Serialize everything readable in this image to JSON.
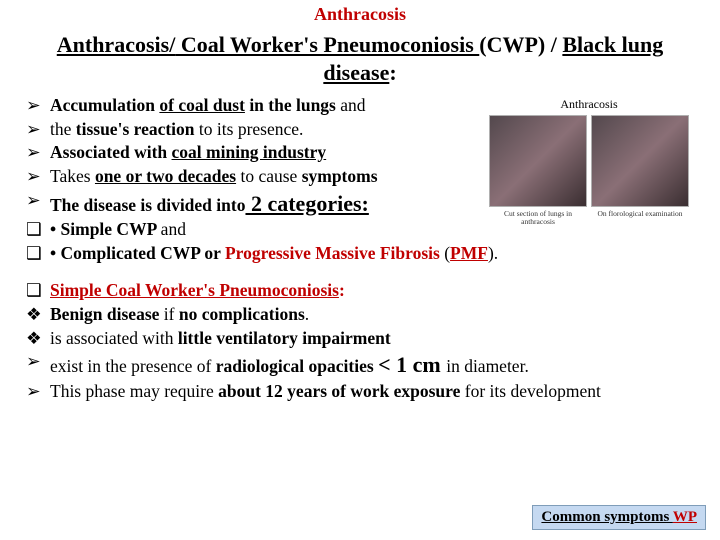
{
  "header": "Anthracosis",
  "title": {
    "pre": "Anthracosis/",
    "mid": " Coal Worker's Pneumoconiosis ",
    "abbr": "(CWP) / ",
    "end": "Black lung disease",
    "tail": ":"
  },
  "figure": {
    "label": "Anthracosis",
    "cap1": "Cut section of lungs in anthracosis",
    "cap2": "On florological examination"
  },
  "b1": {
    "l1a": " Accumulation ",
    "l1b": "of coal dust",
    "l1c": " in the lungs ",
    "l1d": "and",
    "l2a": "the ",
    "l2b": "tissue's reaction",
    "l2c": " to its presence.",
    "l3a": "Associated with ",
    "l3b": "coal mining industry",
    "l4a": "Takes ",
    "l4b": "one or two decades",
    "l4c": " to cause ",
    "l4d": "symptoms",
    "l5a": "The disease is divided into",
    "l5b": " 2 categories:",
    "l6a": "• ",
    "l6b": "Simple CWP ",
    "l6c": "and",
    "l7a": "• ",
    "l7b": "Complicated CWP",
    "l7c": " or ",
    "l7d": "Progressive Massive Fibrosis ",
    "l7e": "(",
    "l7f": "PMF",
    "l7g": ")."
  },
  "b2": {
    "l1a": "Simple Coal Worker's Pneumoconiosis",
    "l1b": ":",
    "l2a": "Benign disease ",
    "l2b": "if ",
    "l2c": "no complications",
    "l2d": ".",
    "l3a": "is associated with ",
    "l3b": "little ventilatory impairment",
    "l4a": "exist in the presence of ",
    "l4b": "radiological opacities ",
    "l4c": "< 1 cm ",
    "l4d": "in diameter.",
    "l5a": "This phase may require ",
    "l5b": "about 12 years of work exposure ",
    "l5c": "for its development"
  },
  "footer": {
    "a": "Common symptoms ",
    "b": "WP"
  },
  "markers": {
    "arrow": "➢",
    "square": "❑",
    "diamond": "❖"
  },
  "colors": {
    "red": "#c00000",
    "link_bg": "#c5d9f1",
    "link_border": "#7f9db9"
  }
}
